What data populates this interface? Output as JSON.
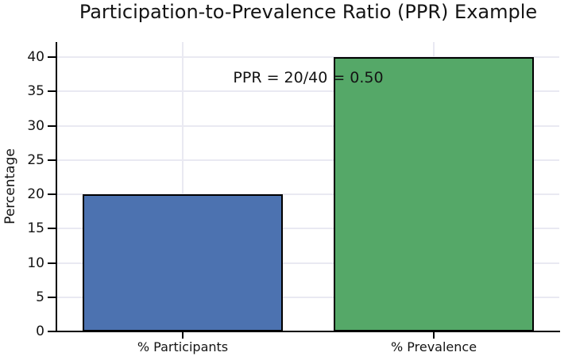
{
  "chart_data": {
    "type": "bar",
    "title": "Participation-to-Prevalence Ratio (PPR) Example",
    "categories": [
      "% Participants",
      "% Prevalence"
    ],
    "values": [
      20,
      40
    ],
    "bar_colors": [
      "#4c72b0",
      "#55a868"
    ],
    "bar_edge_color": "#000000",
    "annotation": {
      "text": "PPR = 20/40 = 0.50",
      "x_fraction": 0.5,
      "y_value": 37
    },
    "ylabel": "Percentage",
    "xlabel": "",
    "ylim": [
      0,
      42.2
    ],
    "yticks": [
      0,
      5,
      10,
      15,
      20,
      25,
      30,
      35,
      40
    ],
    "grid": {
      "show": true,
      "axis": "both",
      "color": "#e9e9f2"
    },
    "legend": null,
    "background": "#ffffff",
    "text_color": "#141414"
  }
}
